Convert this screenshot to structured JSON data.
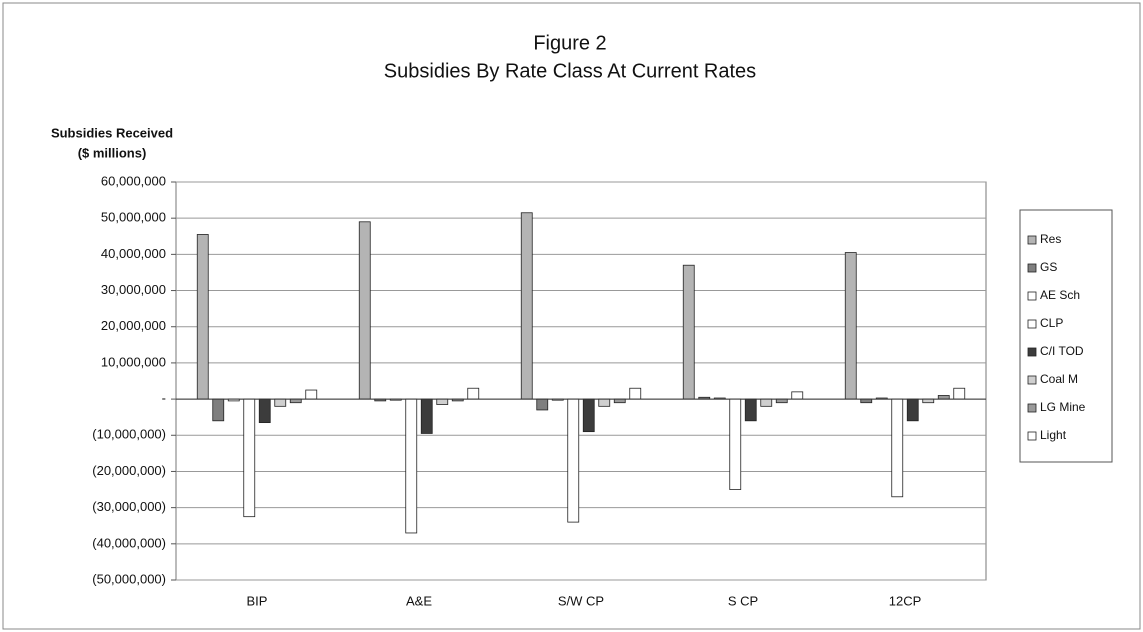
{
  "chart_data": {
    "type": "bar",
    "title": "Figure 2",
    "subtitle": "Subsidies By Rate Class At Current Rates",
    "ylabel_lines": [
      "Subsidies Received",
      "($ millions)"
    ],
    "categories": [
      "BIP",
      "A&E",
      "S/W CP",
      "S CP",
      "12CP"
    ],
    "series": [
      {
        "name": "Res",
        "color": "#b4b4b4",
        "values": [
          45500000,
          49000000,
          51500000,
          37000000,
          40500000
        ]
      },
      {
        "name": "GS",
        "color": "#7f7f7f",
        "values": [
          -6000000,
          -500000,
          -3000000,
          500000,
          -1000000
        ]
      },
      {
        "name": "AE Sch",
        "color": "#ffffff",
        "values": [
          -500000,
          -300000,
          -300000,
          300000,
          300000
        ]
      },
      {
        "name": "CLP",
        "color": "#ffffff",
        "values": [
          -32500000,
          -37000000,
          -34000000,
          -25000000,
          -27000000
        ]
      },
      {
        "name": "C/I TOD",
        "color": "#3c3c3c",
        "values": [
          -6500000,
          -9500000,
          -9000000,
          -6000000,
          -6000000
        ]
      },
      {
        "name": "Coal M",
        "color": "#cfcfcf",
        "values": [
          -2000000,
          -1500000,
          -2000000,
          -2000000,
          -1000000
        ]
      },
      {
        "name": "LG Mine",
        "color": "#9a9a9a",
        "values": [
          -1000000,
          -500000,
          -1000000,
          -1000000,
          1000000
        ]
      },
      {
        "name": "Light",
        "color": "#ffffff",
        "values": [
          2500000,
          3000000,
          3000000,
          2000000,
          3000000
        ]
      }
    ],
    "ylim": [
      -50000000,
      60000000
    ],
    "yticks": [
      {
        "value": -50000000,
        "label": "(50,000,000)"
      },
      {
        "value": -40000000,
        "label": "(40,000,000)"
      },
      {
        "value": -30000000,
        "label": "(30,000,000)"
      },
      {
        "value": -20000000,
        "label": "(20,000,000)"
      },
      {
        "value": -10000000,
        "label": "(10,000,000)"
      },
      {
        "value": 0,
        "label": "-"
      },
      {
        "value": 10000000,
        "label": "10,000,000"
      },
      {
        "value": 20000000,
        "label": "20,000,000"
      },
      {
        "value": 30000000,
        "label": "30,000,000"
      },
      {
        "value": 40000000,
        "label": "40,000,000"
      },
      {
        "value": 50000000,
        "label": "50,000,000"
      },
      {
        "value": 60000000,
        "label": "60,000,000"
      }
    ],
    "grid": true,
    "legend": "right"
  }
}
